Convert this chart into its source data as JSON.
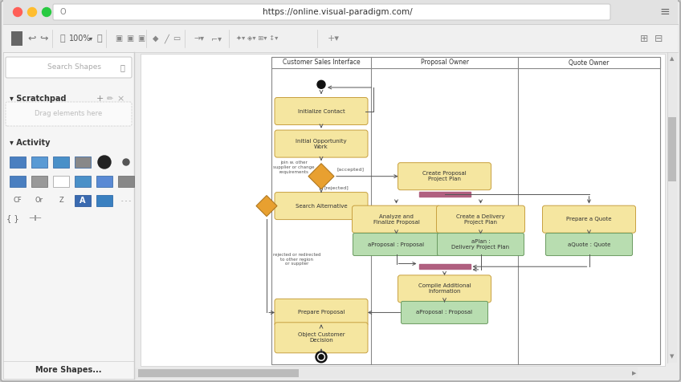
{
  "url": "https://online.visual-paradigm.com/",
  "swimlane_labels": [
    "Customer Sales Interface",
    "Proposal Owner",
    "Quote Owner"
  ],
  "yellow_fill": "#f5e6a0",
  "yellow_edge": "#c8a040",
  "green_fill": "#b8ddb0",
  "green_edge": "#6a9a60",
  "pink_bar": "#b06080",
  "diamond_fill": "#e8a030",
  "diamond_edge": "#b07820",
  "arrow_color": "#555555",
  "text_color": "#333333",
  "bg_outer": "#c8c8c8",
  "bg_window": "#f0f0f0",
  "title_bar_bg": "#e4e4e4",
  "toolbar_bg": "#f2f2f2",
  "left_panel_bg": "#f5f5f5",
  "canvas_bg": "#ffffff",
  "traffic_lights": [
    "#ff5f57",
    "#ffbd2e",
    "#28ca41"
  ]
}
